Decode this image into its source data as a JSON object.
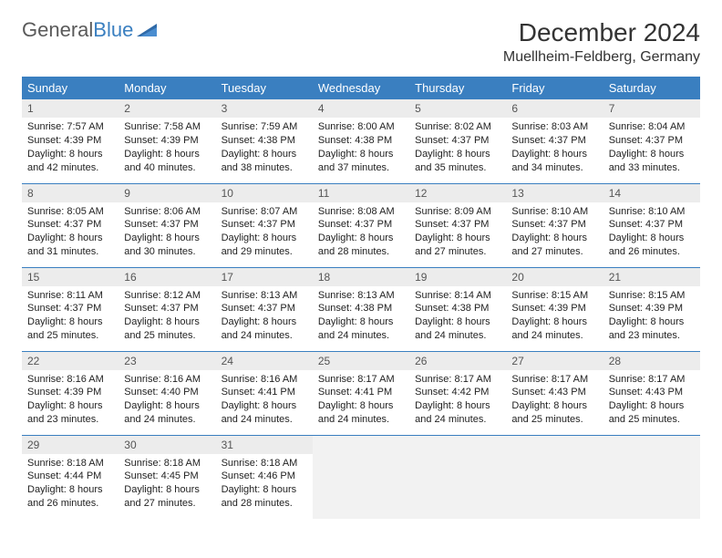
{
  "logo": {
    "part1": "General",
    "part2": "Blue"
  },
  "title": "December 2024",
  "location": "Muellheim-Feldberg, Germany",
  "dayHeaders": [
    "Sunday",
    "Monday",
    "Tuesday",
    "Wednesday",
    "Thursday",
    "Friday",
    "Saturday"
  ],
  "colors": {
    "headerBg": "#3a7fc0",
    "headerText": "#ffffff",
    "dayNumBg": "#ececec",
    "rowBorder": "#3a7fc0",
    "logoGray": "#5a5a5a",
    "logoBlue": "#3a7fc0"
  },
  "weeks": [
    [
      {
        "n": "1",
        "sr": "7:57 AM",
        "ss": "4:39 PM",
        "dl": "8 hours and 42 minutes."
      },
      {
        "n": "2",
        "sr": "7:58 AM",
        "ss": "4:39 PM",
        "dl": "8 hours and 40 minutes."
      },
      {
        "n": "3",
        "sr": "7:59 AM",
        "ss": "4:38 PM",
        "dl": "8 hours and 38 minutes."
      },
      {
        "n": "4",
        "sr": "8:00 AM",
        "ss": "4:38 PM",
        "dl": "8 hours and 37 minutes."
      },
      {
        "n": "5",
        "sr": "8:02 AM",
        "ss": "4:37 PM",
        "dl": "8 hours and 35 minutes."
      },
      {
        "n": "6",
        "sr": "8:03 AM",
        "ss": "4:37 PM",
        "dl": "8 hours and 34 minutes."
      },
      {
        "n": "7",
        "sr": "8:04 AM",
        "ss": "4:37 PM",
        "dl": "8 hours and 33 minutes."
      }
    ],
    [
      {
        "n": "8",
        "sr": "8:05 AM",
        "ss": "4:37 PM",
        "dl": "8 hours and 31 minutes."
      },
      {
        "n": "9",
        "sr": "8:06 AM",
        "ss": "4:37 PM",
        "dl": "8 hours and 30 minutes."
      },
      {
        "n": "10",
        "sr": "8:07 AM",
        "ss": "4:37 PM",
        "dl": "8 hours and 29 minutes."
      },
      {
        "n": "11",
        "sr": "8:08 AM",
        "ss": "4:37 PM",
        "dl": "8 hours and 28 minutes."
      },
      {
        "n": "12",
        "sr": "8:09 AM",
        "ss": "4:37 PM",
        "dl": "8 hours and 27 minutes."
      },
      {
        "n": "13",
        "sr": "8:10 AM",
        "ss": "4:37 PM",
        "dl": "8 hours and 27 minutes."
      },
      {
        "n": "14",
        "sr": "8:10 AM",
        "ss": "4:37 PM",
        "dl": "8 hours and 26 minutes."
      }
    ],
    [
      {
        "n": "15",
        "sr": "8:11 AM",
        "ss": "4:37 PM",
        "dl": "8 hours and 25 minutes."
      },
      {
        "n": "16",
        "sr": "8:12 AM",
        "ss": "4:37 PM",
        "dl": "8 hours and 25 minutes."
      },
      {
        "n": "17",
        "sr": "8:13 AM",
        "ss": "4:37 PM",
        "dl": "8 hours and 24 minutes."
      },
      {
        "n": "18",
        "sr": "8:13 AM",
        "ss": "4:38 PM",
        "dl": "8 hours and 24 minutes."
      },
      {
        "n": "19",
        "sr": "8:14 AM",
        "ss": "4:38 PM",
        "dl": "8 hours and 24 minutes."
      },
      {
        "n": "20",
        "sr": "8:15 AM",
        "ss": "4:39 PM",
        "dl": "8 hours and 24 minutes."
      },
      {
        "n": "21",
        "sr": "8:15 AM",
        "ss": "4:39 PM",
        "dl": "8 hours and 23 minutes."
      }
    ],
    [
      {
        "n": "22",
        "sr": "8:16 AM",
        "ss": "4:39 PM",
        "dl": "8 hours and 23 minutes."
      },
      {
        "n": "23",
        "sr": "8:16 AM",
        "ss": "4:40 PM",
        "dl": "8 hours and 24 minutes."
      },
      {
        "n": "24",
        "sr": "8:16 AM",
        "ss": "4:41 PM",
        "dl": "8 hours and 24 minutes."
      },
      {
        "n": "25",
        "sr": "8:17 AM",
        "ss": "4:41 PM",
        "dl": "8 hours and 24 minutes."
      },
      {
        "n": "26",
        "sr": "8:17 AM",
        "ss": "4:42 PM",
        "dl": "8 hours and 24 minutes."
      },
      {
        "n": "27",
        "sr": "8:17 AM",
        "ss": "4:43 PM",
        "dl": "8 hours and 25 minutes."
      },
      {
        "n": "28",
        "sr": "8:17 AM",
        "ss": "4:43 PM",
        "dl": "8 hours and 25 minutes."
      }
    ],
    [
      {
        "n": "29",
        "sr": "8:18 AM",
        "ss": "4:44 PM",
        "dl": "8 hours and 26 minutes."
      },
      {
        "n": "30",
        "sr": "8:18 AM",
        "ss": "4:45 PM",
        "dl": "8 hours and 27 minutes."
      },
      {
        "n": "31",
        "sr": "8:18 AM",
        "ss": "4:46 PM",
        "dl": "8 hours and 28 minutes."
      },
      null,
      null,
      null,
      null
    ]
  ],
  "labels": {
    "sunrise": "Sunrise: ",
    "sunset": "Sunset: ",
    "daylight": "Daylight: "
  }
}
